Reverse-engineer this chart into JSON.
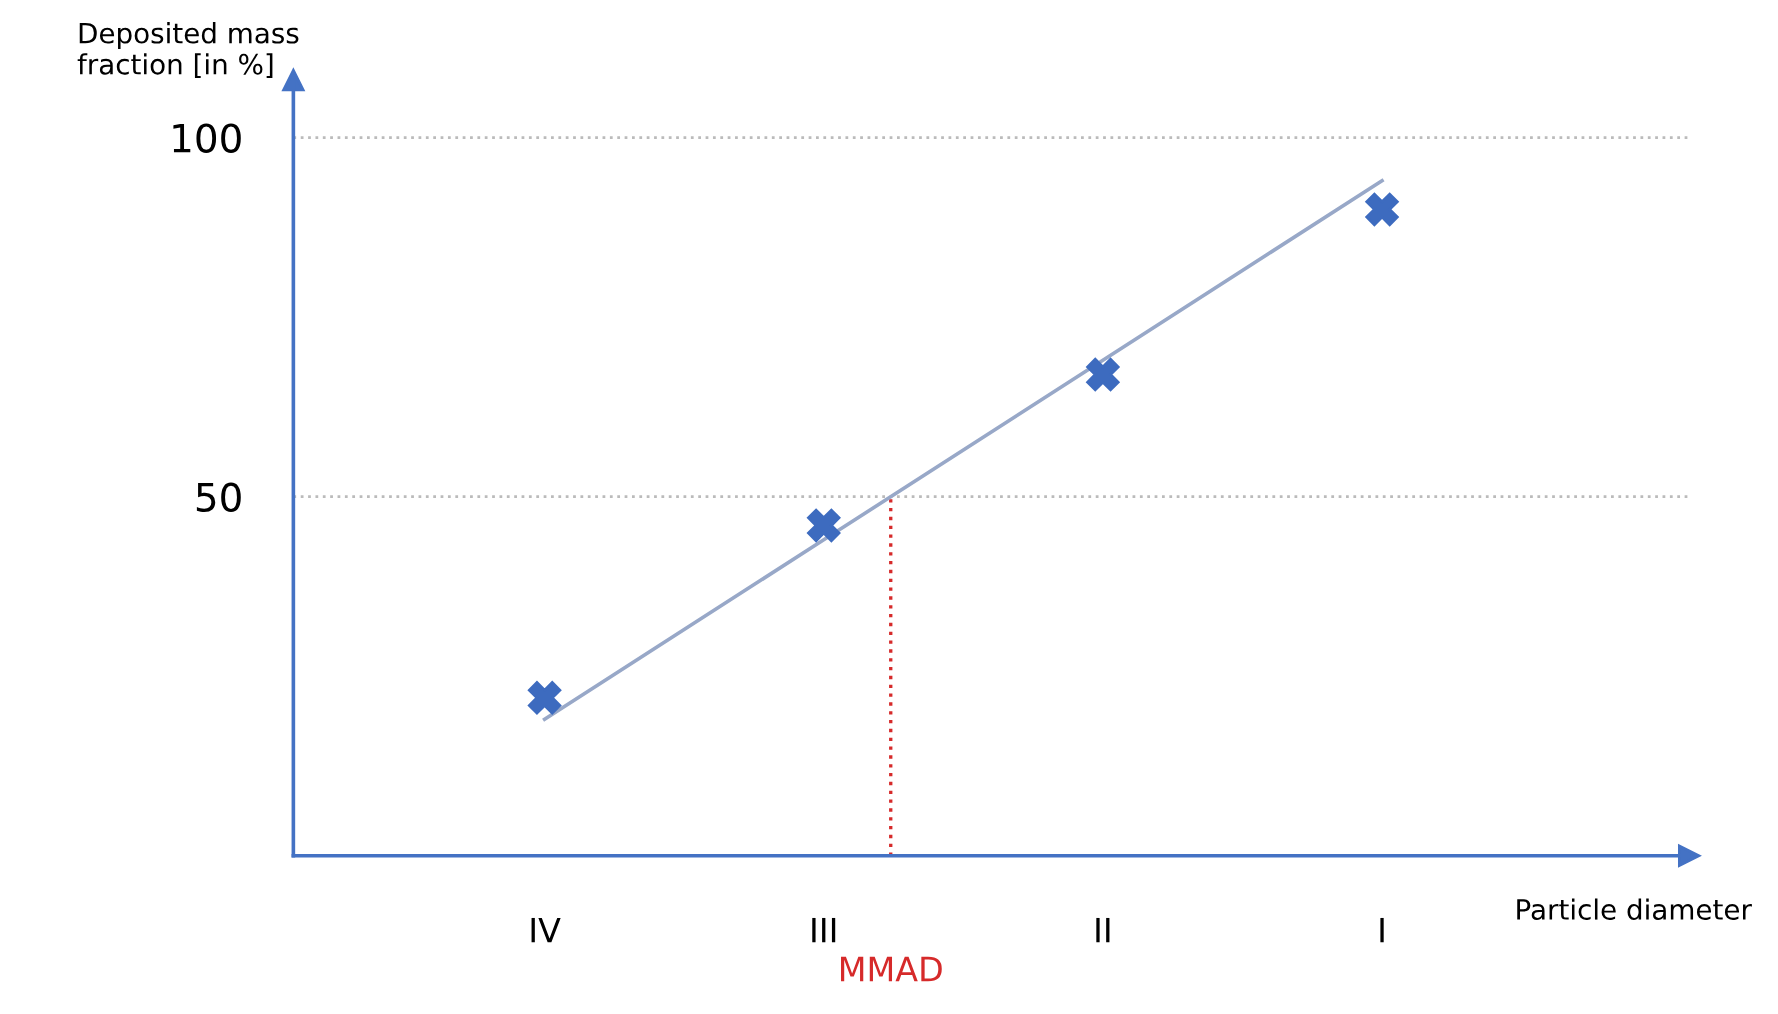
{
  "chart_data": {
    "type": "scatter",
    "ylabel": "Deposited mass\nfraction [in %]",
    "xlabel": "Particle diameter",
    "categories": [
      "IV",
      "III",
      "II",
      "I"
    ],
    "ylim": [
      0,
      108
    ],
    "yticks": [
      50,
      100
    ],
    "grid": "y",
    "series": [
      {
        "color": "#3d6bbf",
        "marker": "cross",
        "values": [
          22,
          46,
          67,
          90
        ]
      },
      {
        "type": "line",
        "color": "#98a8c8",
        "values": [
          19,
          44,
          69,
          94
        ]
      }
    ],
    "annotations": [
      "MMAD"
    ]
  }
}
